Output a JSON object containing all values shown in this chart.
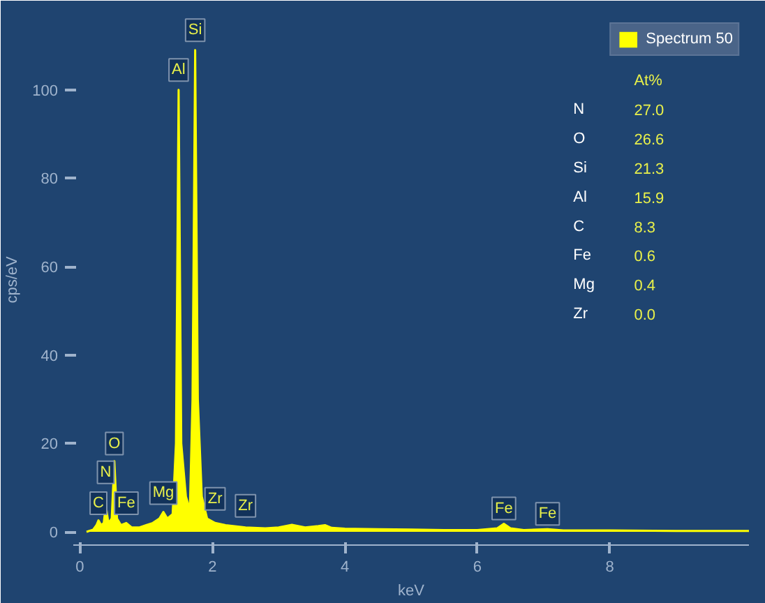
{
  "chart_data": {
    "type": "area",
    "ylabel": "cps/eV",
    "xlabel": "keV",
    "x": [
      0.1,
      0.2,
      0.25,
      0.28,
      0.32,
      0.36,
      0.39,
      0.43,
      0.48,
      0.52,
      0.56,
      0.62,
      0.7,
      0.78,
      0.9,
      1.0,
      1.1,
      1.2,
      1.26,
      1.32,
      1.4,
      1.45,
      1.49,
      1.53,
      1.6,
      1.66,
      1.7,
      1.74,
      1.78,
      1.84,
      1.92,
      2.04,
      2.2,
      2.5,
      2.8,
      3.0,
      3.2,
      3.4,
      3.6,
      3.7,
      3.8,
      4.0,
      4.5,
      5.0,
      5.5,
      6.0,
      6.3,
      6.4,
      6.5,
      6.7,
      7.06,
      7.3,
      8.0,
      9.0,
      10.1
    ],
    "series": [
      {
        "name": "Spectrum 50",
        "color": "#ffff00",
        "values": [
          0,
          0.5,
          1.5,
          2.6,
          1.5,
          2,
          6,
          2,
          3,
          16,
          3,
          1.5,
          2,
          1,
          1,
          1.5,
          2,
          3,
          4.5,
          3,
          4,
          20,
          100,
          20,
          8,
          5,
          30,
          109,
          30,
          8,
          3,
          2,
          1.5,
          1,
          0.8,
          1,
          1.6,
          1,
          1.3,
          1.5,
          0.9,
          0.7,
          0.6,
          0.5,
          0.4,
          0.4,
          0.8,
          1.8,
          0.8,
          0.4,
          0.6,
          0.3,
          0.3,
          0.2,
          0.2
        ]
      }
    ],
    "xlim": [
      -0.1,
      10.1
    ],
    "ylim": [
      -3,
      117
    ],
    "xticks": [
      0,
      2,
      4,
      6,
      8
    ],
    "yticks": [
      0,
      20,
      40,
      60,
      80,
      100
    ],
    "grid": false,
    "legend": "top right",
    "annotations": [
      {
        "text": "C",
        "x": 0.28,
        "y": 3
      },
      {
        "text": "N",
        "x": 0.39,
        "y": 10
      },
      {
        "text": "O",
        "x": 0.52,
        "y": 16.5
      },
      {
        "text": "Fe",
        "x": 0.7,
        "y": 3
      },
      {
        "text": "Mg",
        "x": 1.26,
        "y": 5.3
      },
      {
        "text": "Al",
        "x": 1.49,
        "y": 101
      },
      {
        "text": "Si",
        "x": 1.74,
        "y": 110
      },
      {
        "text": "Zr",
        "x": 2.04,
        "y": 4
      },
      {
        "text": "Zr",
        "x": 2.5,
        "y": 2.4
      },
      {
        "text": "Fe",
        "x": 6.4,
        "y": 1.8
      },
      {
        "text": "Fe",
        "x": 7.06,
        "y": 0.6
      },
      "At%",
      "N 27.0",
      "O 26.6",
      "Si 21.3",
      "Al 15.9",
      "C 8.3",
      "Fe 0.6",
      "Mg 0.4",
      "Zr 0.0"
    ]
  }
}
